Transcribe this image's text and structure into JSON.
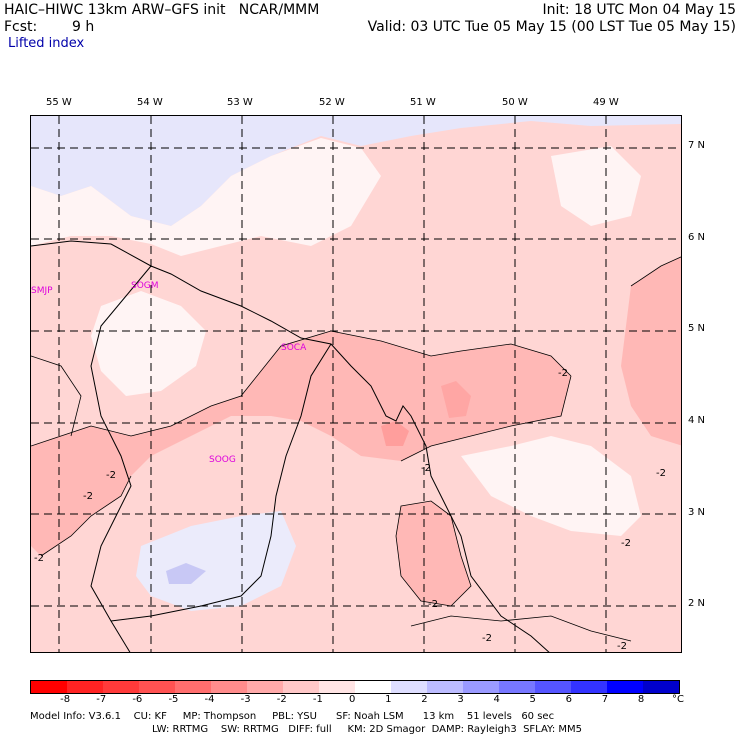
{
  "header": {
    "title": "HAIC–HIWC 13km ARW–GFS init   NCAR/MMM",
    "fcst_label": "Fcst:",
    "fcst_value": "9 h",
    "field": "Lifted index",
    "init": "Init: 18 UTC Mon 04 May 15",
    "valid": "Valid: 03 UTC Tue 05 May 15 (00 LST Tue 05 May 15)"
  },
  "lon_labels": [
    "55 W",
    "54 W",
    "53 W",
    "52 W",
    "51 W",
    "50 W",
    "49 W"
  ],
  "lat_labels": [
    "7 N",
    "6 N",
    "5 N",
    "4 N",
    "3 N",
    "2 N"
  ],
  "stations": [
    "SMJP",
    "SOGM",
    "SOCA",
    "SOOG"
  ],
  "contour_labels": [
    "-2",
    "-2",
    "-2",
    "-2",
    "-2",
    "-2",
    "-2",
    "-2",
    "-2",
    "-2"
  ],
  "colorbar": {
    "unit": "°C",
    "ticks": [
      "-8",
      "-7",
      "-6",
      "-5",
      "-4",
      "-3",
      "-2",
      "-1",
      "0",
      "1",
      "2",
      "3",
      "4",
      "5",
      "6",
      "7",
      "8"
    ],
    "colors": [
      "#ff0000",
      "#ff2323",
      "#ff3a3a",
      "#ff5252",
      "#ff6e6e",
      "#ff8c8c",
      "#ffaaaa",
      "#ffc8c8",
      "#ffe4e4",
      "#ffffff",
      "#dedeff",
      "#bcbcff",
      "#9a9aff",
      "#7777ff",
      "#5555ff",
      "#3333ff",
      "#0000ff",
      "#0000cc"
    ]
  },
  "footer": {
    "line1": "Model Info: V3.6.1    CU: KF     MP: Thompson     PBL: YSU      SF: Noah LSM      13 km    51 levels   60 sec",
    "line2": "LW: RRTMG    SW: RRTMG   DIFF: full     KM: 2D Smagor  DAMP: Rayleigh3  SFLAY: MM5"
  }
}
